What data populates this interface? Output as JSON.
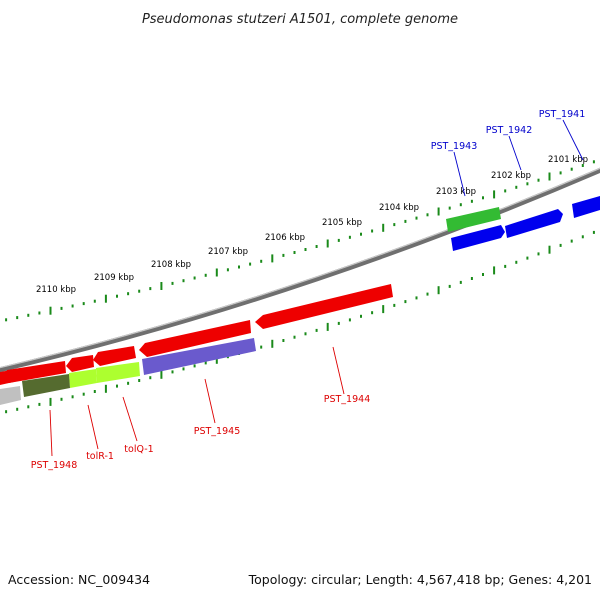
{
  "title": "Pseudomonas stutzeri A1501, complete genome",
  "footer": {
    "accession": "Accession: NC_009434",
    "stats": "Topology: circular; Length: 4,567,418 bp; Genes: 4,201"
  },
  "scale_labels": [
    "2101 kbp",
    "2102 kbp",
    "2103 kbp",
    "2104 kbp",
    "2105 kbp",
    "2106 kbp",
    "2107 kbp",
    "2108 kbp",
    "2109 kbp",
    "2110 kbp"
  ],
  "colors": {
    "backbone": "#7f7f7f",
    "tick": "#1a8a1a",
    "red_gene": "#ff0000",
    "blue_gene": "#0000ee",
    "green_gene": "#33bb33",
    "purple_gene": "#6a5acd",
    "olive_gene": "#556b2f",
    "lime_gene": "#adff2f",
    "grey_gene": "#c0c0c0",
    "red_label": "#dd0000",
    "blue_label": "#0000cc"
  },
  "gene_labels": {
    "pst1941": "PST_1941",
    "pst1942": "PST_1942",
    "pst1943": "PST_1943",
    "pst1944": "PST_1944",
    "pst1945": "PST_1945",
    "pst1948": "PST_1948",
    "tolr": "tolR-1",
    "tolq": "tolQ-1"
  }
}
